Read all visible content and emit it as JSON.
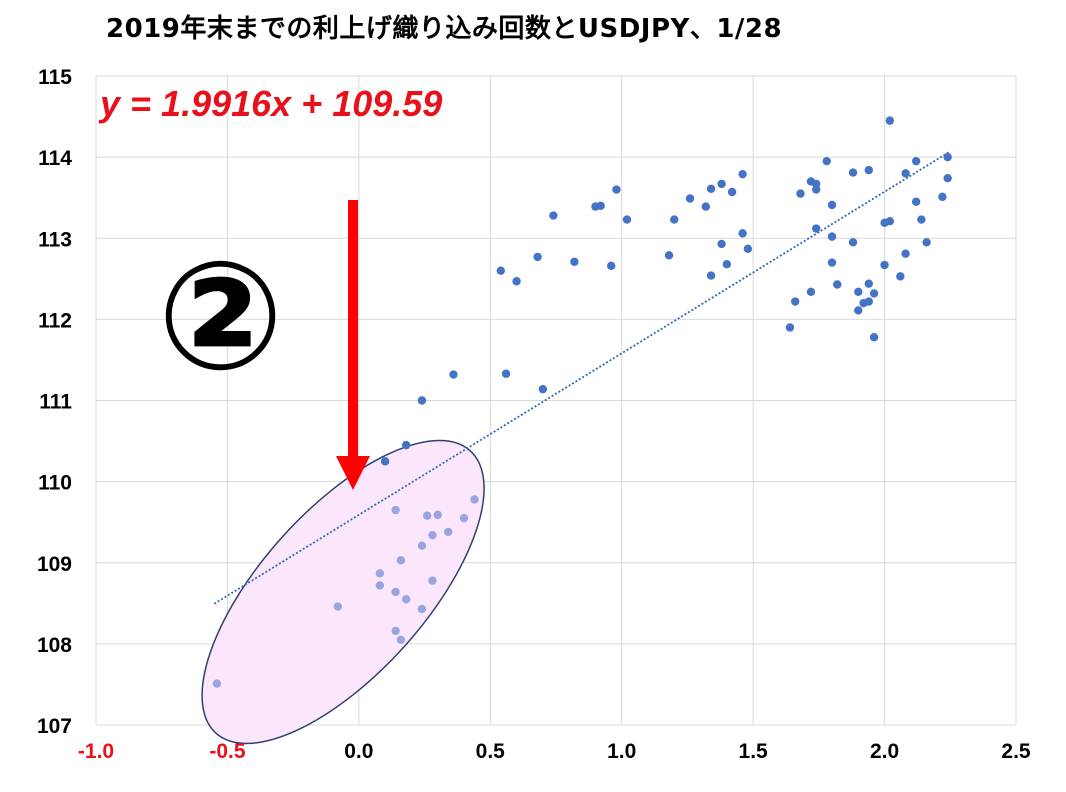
{
  "title": "2019年末までの利上げ織り込み回数とUSDJPY、1/28",
  "annotation_number": "②",
  "colors": {
    "points": "#4472c4",
    "highlight_points": "#9aa4e0",
    "equation": "#e8101a",
    "arrow": "#ff0000",
    "ellipse_fill": "#fbe6fb",
    "ellipse_stroke": "#2f4170",
    "grid": "#d9d9d9",
    "trendline": "#2e6bb8",
    "negative_tick": "#e8101a"
  },
  "chart_data": {
    "type": "scatter",
    "title": "2019年末までの利上げ織り込み回数とUSDJPY、1/28",
    "xlabel": "",
    "ylabel": "",
    "xlim": [
      -1.0,
      2.5
    ],
    "ylim": [
      107,
      115
    ],
    "x_ticks": [
      "-1.0",
      "-0.5",
      "0.0",
      "0.5",
      "1.0",
      "1.5",
      "2.0",
      "2.5"
    ],
    "y_ticks": [
      "107",
      "108",
      "109",
      "110",
      "111",
      "112",
      "113",
      "114",
      "115"
    ],
    "grid": true,
    "equation": "y = 1.9916x + 109.59",
    "trendline": {
      "slope": 1.9916,
      "intercept": 109.59,
      "x_range": [
        -0.55,
        2.25
      ]
    },
    "series": [
      {
        "values": [
          [
            0.1,
            110.25
          ],
          [
            0.18,
            110.45
          ],
          [
            0.24,
            111.0
          ],
          [
            0.36,
            111.32
          ],
          [
            0.56,
            111.33
          ],
          [
            0.7,
            111.14
          ],
          [
            0.54,
            112.6
          ],
          [
            0.6,
            112.47
          ],
          [
            0.68,
            112.77
          ],
          [
            0.74,
            113.28
          ],
          [
            0.82,
            112.71
          ],
          [
            0.9,
            113.39
          ],
          [
            0.92,
            113.4
          ],
          [
            0.96,
            112.66
          ],
          [
            0.98,
            113.6
          ],
          [
            1.02,
            113.23
          ],
          [
            1.18,
            112.79
          ],
          [
            1.2,
            113.23
          ],
          [
            1.26,
            113.49
          ],
          [
            1.32,
            113.39
          ],
          [
            1.34,
            113.61
          ],
          [
            1.34,
            112.54
          ],
          [
            1.38,
            113.67
          ],
          [
            1.38,
            112.93
          ],
          [
            1.4,
            112.68
          ],
          [
            1.42,
            113.57
          ],
          [
            1.46,
            113.79
          ],
          [
            1.46,
            113.06
          ],
          [
            1.48,
            112.87
          ],
          [
            1.64,
            111.9
          ],
          [
            1.66,
            112.22
          ],
          [
            1.68,
            113.55
          ],
          [
            1.72,
            113.7
          ],
          [
            1.72,
            112.34
          ],
          [
            1.74,
            113.67
          ],
          [
            1.74,
            113.6
          ],
          [
            1.74,
            113.12
          ],
          [
            1.78,
            113.95
          ],
          [
            1.8,
            113.41
          ],
          [
            1.8,
            113.02
          ],
          [
            1.8,
            112.7
          ],
          [
            1.82,
            112.43
          ],
          [
            1.88,
            113.81
          ],
          [
            1.88,
            112.95
          ],
          [
            1.9,
            112.34
          ],
          [
            1.9,
            112.11
          ],
          [
            1.92,
            112.2
          ],
          [
            1.94,
            113.84
          ],
          [
            1.94,
            112.44
          ],
          [
            1.94,
            112.22
          ],
          [
            1.96,
            112.32
          ],
          [
            1.96,
            111.78
          ],
          [
            2.0,
            113.19
          ],
          [
            2.0,
            112.67
          ],
          [
            2.02,
            114.45
          ],
          [
            2.02,
            113.21
          ],
          [
            2.06,
            112.53
          ],
          [
            2.08,
            113.8
          ],
          [
            2.08,
            112.81
          ],
          [
            2.12,
            113.95
          ],
          [
            2.12,
            113.45
          ],
          [
            2.14,
            113.23
          ],
          [
            2.16,
            112.95
          ],
          [
            2.22,
            113.51
          ],
          [
            2.24,
            114.0
          ],
          [
            2.24,
            113.74
          ]
        ]
      },
      {
        "values": [
          [
            -0.54,
            107.51
          ],
          [
            -0.08,
            108.46
          ],
          [
            0.08,
            108.87
          ],
          [
            0.08,
            108.72
          ],
          [
            0.14,
            109.65
          ],
          [
            0.14,
            108.64
          ],
          [
            0.14,
            108.16
          ],
          [
            0.16,
            109.03
          ],
          [
            0.16,
            108.05
          ],
          [
            0.18,
            108.55
          ],
          [
            0.24,
            109.21
          ],
          [
            0.24,
            108.43
          ],
          [
            0.26,
            109.58
          ],
          [
            0.28,
            109.34
          ],
          [
            0.28,
            108.78
          ],
          [
            0.3,
            109.59
          ],
          [
            0.34,
            109.38
          ],
          [
            0.4,
            109.55
          ],
          [
            0.44,
            109.78
          ]
        ]
      }
    ]
  }
}
